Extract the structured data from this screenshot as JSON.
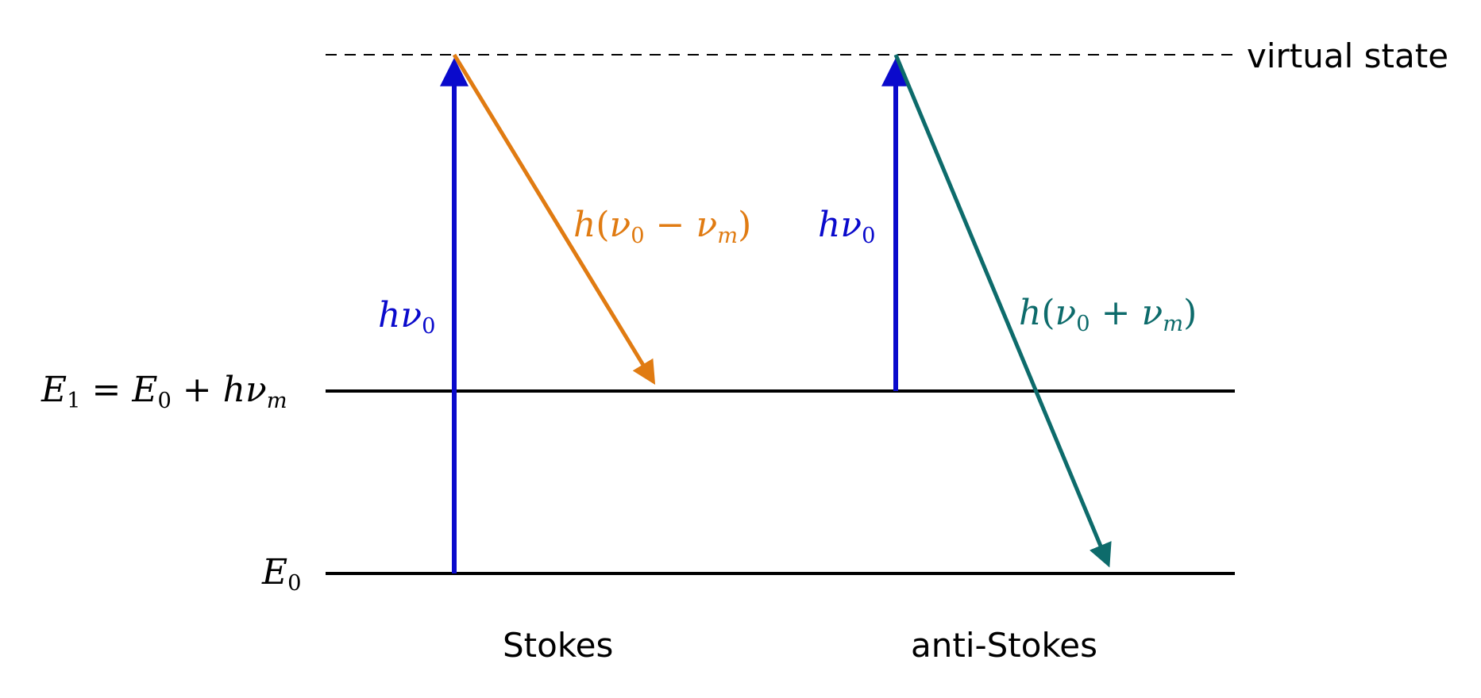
{
  "diagram": {
    "levels": {
      "virtual": {
        "label": "virtual state"
      },
      "e1": {
        "lhs": "E",
        "lhs_sub": "1",
        "eq": " = ",
        "rhs": "E",
        "rhs_sub": "0",
        "plus": " + ",
        "h": "h",
        "nu": "ν",
        "nu_sub": "m"
      },
      "e0": {
        "sym": "E",
        "sub": "0"
      }
    },
    "stokes": {
      "caption": "Stokes",
      "absorb": {
        "h": "h",
        "nu": "ν",
        "sub": "0"
      },
      "emit": {
        "open": "(",
        "nu0": "ν",
        "sub0": "0",
        "op": " − ",
        "num": "ν",
        "subm": "m",
        "close": ")",
        "h": "h"
      }
    },
    "anti_stokes": {
      "caption": "anti-Stokes",
      "absorb": {
        "h": "h",
        "nu": "ν",
        "sub": "0"
      },
      "emit": {
        "open": "(",
        "nu0": "ν",
        "sub0": "0",
        "op": " + ",
        "num": "ν",
        "subm": "m",
        "close": ")",
        "h": "h"
      }
    },
    "colors": {
      "absorption": "#0a0acc",
      "stokes_emission": "#e07b12",
      "anti_stokes_emission": "#0d6b6b",
      "levels": "#000000"
    }
  }
}
